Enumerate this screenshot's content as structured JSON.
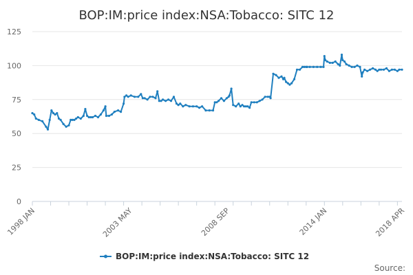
{
  "chart_data": {
    "type": "line",
    "title": "BOP:IM:price index:NSA:Tobacco: SITC 12",
    "xlabel": "",
    "ylabel": "",
    "ylim": [
      0,
      125
    ],
    "y_ticks": [
      0,
      25,
      50,
      75,
      100,
      125
    ],
    "x_range": [
      1998.0,
      2018.25
    ],
    "x_ticks": [
      {
        "label": "1998 JAN",
        "t": 1998.0
      },
      {
        "label": "2003 MAY",
        "t": 2003.333
      },
      {
        "label": "2008 SEP",
        "t": 2008.667
      },
      {
        "label": "2014 JAN",
        "t": 2014.0
      },
      {
        "label": "2018 APR",
        "t": 2018.25
      }
    ],
    "grid": true,
    "legend_position": "bottom-center",
    "color": "#1f7fbf",
    "series": [
      {
        "name": "BOP:IM:price index:NSA:Tobacco: SITC 12",
        "x": [
          1998.0,
          1998.1,
          1998.2,
          1998.35,
          1998.55,
          1998.75,
          1998.85,
          1998.95,
          1999.05,
          1999.15,
          1999.25,
          1999.35,
          1999.45,
          1999.55,
          1999.7,
          1999.85,
          2000.0,
          2000.1,
          2000.2,
          2000.3,
          2000.4,
          2000.5,
          2000.65,
          2000.8,
          2000.9,
          2001.0,
          2001.1,
          2001.2,
          2001.3,
          2001.45,
          2001.6,
          2001.75,
          2001.9,
          2002.0,
          2002.05,
          2002.2,
          2002.35,
          2002.5,
          2002.7,
          2002.85,
          2003.0,
          2003.05,
          2003.15,
          2003.25,
          2003.4,
          2003.6,
          2003.8,
          2003.95,
          2004.05,
          2004.15,
          2004.3,
          2004.45,
          2004.6,
          2004.75,
          2004.85,
          2004.95,
          2005.05,
          2005.15,
          2005.3,
          2005.45,
          2005.6,
          2005.75,
          2005.9,
          2006.0,
          2006.1,
          2006.25,
          2006.4,
          2006.6,
          2006.8,
          2007.0,
          2007.15,
          2007.3,
          2007.5,
          2007.7,
          2007.9,
          2008.0,
          2008.1,
          2008.2,
          2008.35,
          2008.5,
          2008.65,
          2008.75,
          2008.8,
          2008.9,
          2009.0,
          2009.15,
          2009.3,
          2009.4,
          2009.5,
          2009.6,
          2009.7,
          2009.8,
          2009.9,
          2010.0,
          2010.15,
          2010.3,
          2010.45,
          2010.6,
          2010.75,
          2010.9,
          2011.0,
          2011.05,
          2011.2,
          2011.35,
          2011.5,
          2011.65,
          2011.75,
          2011.8,
          2011.9,
          2012.0,
          2012.1,
          2012.2,
          2012.35,
          2012.5,
          2012.65,
          2012.8,
          2012.9,
          2013.0,
          2013.05,
          2013.2,
          2013.4,
          2013.6,
          2013.8,
          2013.95,
          2014.0,
          2014.05,
          2014.15,
          2014.3,
          2014.45,
          2014.6,
          2014.75,
          2014.85,
          2014.95,
          2015.0,
          2015.1,
          2015.2,
          2015.35,
          2015.5,
          2015.65,
          2015.8,
          2015.95,
          2016.05,
          2016.1,
          2016.2,
          2016.35,
          2016.5,
          2016.65,
          2016.8,
          2016.9,
          2017.0,
          2017.1,
          2017.25,
          2017.4,
          2017.55,
          2017.7,
          2017.85,
          2018.0,
          2018.1,
          2018.25
        ],
        "values": [
          65,
          64,
          61,
          60,
          59,
          55,
          53,
          60,
          67,
          65,
          64,
          65,
          61,
          60,
          57,
          55,
          56,
          60,
          60,
          60,
          61,
          62,
          61,
          63,
          68,
          63,
          62,
          62,
          62,
          63,
          62,
          64,
          67,
          70,
          63,
          63,
          64,
          66,
          67,
          66,
          72,
          77,
          78,
          77,
          78,
          77,
          77,
          79,
          76,
          76,
          75,
          77,
          77,
          76,
          81,
          74,
          74,
          75,
          74,
          75,
          74,
          77,
          72,
          71,
          72,
          70,
          71,
          70,
          70,
          70,
          69,
          70,
          67,
          67,
          67,
          73,
          73,
          74,
          76,
          74,
          76,
          77,
          78,
          83,
          71,
          70,
          72,
          70,
          71,
          70,
          70,
          70,
          69,
          73,
          73,
          73,
          74,
          75,
          77,
          77,
          77,
          76,
          94,
          93,
          91,
          92,
          90,
          91,
          88,
          87,
          86,
          87,
          90,
          97,
          97,
          99,
          99,
          99,
          99,
          99,
          99,
          99,
          99,
          99,
          107,
          104,
          103,
          102,
          102,
          103,
          101,
          100,
          108,
          104,
          103,
          101,
          100,
          99,
          99,
          100,
          99,
          92,
          95,
          97,
          96,
          97,
          98,
          97,
          96,
          97,
          97,
          97,
          98,
          96,
          97,
          97,
          96,
          97,
          97
        ]
      }
    ]
  },
  "source_label": "Source:"
}
